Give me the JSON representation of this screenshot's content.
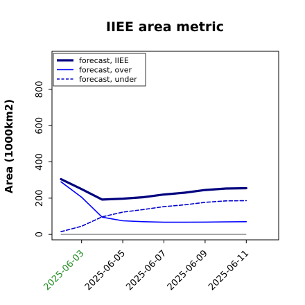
{
  "chart_data": {
    "type": "line",
    "title": "IIEE area metric",
    "xlabel": "",
    "ylabel": "Area (1000km2)",
    "x": [
      "2025-06-02",
      "2025-06-03",
      "2025-06-04",
      "2025-06-05",
      "2025-06-06",
      "2025-06-07",
      "2025-06-08",
      "2025-06-09",
      "2025-06-10",
      "2025-06-11"
    ],
    "xticks": [
      "2025-06-03",
      "2025-06-05",
      "2025-06-07",
      "2025-06-09",
      "2025-06-11"
    ],
    "xtick_highlight": "2025-06-03",
    "xtick_colors": {
      "highlight": "#228b22",
      "default": "#000000"
    },
    "ylim": [
      -30,
      1010
    ],
    "yticks": [
      0,
      200,
      400,
      600,
      800
    ],
    "grid": false,
    "legend_position": "top-left",
    "series": [
      {
        "name": "forecast, IIEE",
        "style": "solid-thick",
        "color": "#00007f",
        "values": [
          305,
          250,
          192,
          197,
          205,
          220,
          230,
          245,
          253,
          255
        ]
      },
      {
        "name": "forecast, over",
        "style": "solid",
        "color": "#0000ff",
        "values": [
          290,
          205,
          95,
          75,
          70,
          67,
          67,
          68,
          69,
          70
        ]
      },
      {
        "name": "forecast, under",
        "style": "dashed",
        "color": "#0000cc",
        "values": [
          15,
          45,
          97,
          123,
          137,
          153,
          163,
          177,
          185,
          186
        ]
      }
    ],
    "baseline": {
      "value": 0,
      "color": "#808080"
    }
  }
}
